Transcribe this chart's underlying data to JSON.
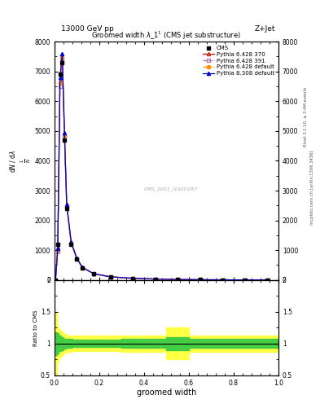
{
  "title": "Groomed width $\\lambda\\_1^1$ (CMS jet substructure)",
  "header_left": "13000 GeV pp",
  "header_right": "Z+Jet",
  "xlabel": "groomed width",
  "ylabel_main": "1 / mathrm{N} d mathrm{N} / d lambda",
  "ylabel_ratio": "Ratio to CMS",
  "watermark": "CMS_2021_I1920187",
  "rivet_text": "Rivet 3.1.10, ≥ 3.4M events",
  "arxiv_text": "mcplots.cern.ch [arXiv:1306.3436]",
  "xlim": [
    0,
    1
  ],
  "ylim_main": [
    0,
    8000
  ],
  "ylim_ratio": [
    0.5,
    2.0
  ],
  "yticks_main": [
    0,
    1000,
    2000,
    3000,
    4000,
    5000,
    6000,
    7000,
    8000
  ],
  "ytick_labels_main": [
    "0",
    "1000",
    "2000",
    "3000",
    "4000",
    "5000",
    "6000",
    "7000",
    "8000"
  ],
  "cms_x": [
    0.005,
    0.015,
    0.025,
    0.035,
    0.045,
    0.055,
    0.075,
    0.1,
    0.125,
    0.175,
    0.25,
    0.35,
    0.45,
    0.55,
    0.65,
    0.75,
    0.85,
    0.95
  ],
  "cms_y": [
    0,
    1200,
    6900,
    7300,
    4700,
    2400,
    1200,
    700,
    400,
    200,
    100,
    55,
    30,
    15,
    8,
    5,
    3,
    2
  ],
  "p6_370_x": [
    0.005,
    0.015,
    0.025,
    0.035,
    0.045,
    0.055,
    0.075,
    0.1,
    0.125,
    0.175,
    0.25,
    0.35,
    0.45,
    0.55,
    0.65,
    0.75,
    0.85,
    0.95
  ],
  "p6_370_y": [
    0,
    1100,
    6700,
    7500,
    4900,
    2500,
    1250,
    720,
    420,
    210,
    105,
    58,
    32,
    16,
    9,
    5,
    3,
    2
  ],
  "p6_391_x": [
    0.005,
    0.015,
    0.025,
    0.035,
    0.045,
    0.055,
    0.075,
    0.1,
    0.125,
    0.175,
    0.25,
    0.35,
    0.45,
    0.55,
    0.65,
    0.75,
    0.85,
    0.95
  ],
  "p6_391_y": [
    0,
    950,
    6500,
    7400,
    4800,
    2450,
    1220,
    710,
    410,
    205,
    102,
    56,
    31,
    15,
    8,
    5,
    3,
    2
  ],
  "p6_def_x": [
    0.005,
    0.015,
    0.025,
    0.035,
    0.045,
    0.055,
    0.075,
    0.1,
    0.125,
    0.175,
    0.25,
    0.35,
    0.45,
    0.55,
    0.65,
    0.75,
    0.85,
    0.95
  ],
  "p6_def_y": [
    0,
    1000,
    6600,
    7450,
    4850,
    2480,
    1230,
    715,
    415,
    208,
    103,
    57,
    31,
    16,
    8,
    5,
    3,
    2
  ],
  "p8_def_x": [
    0.005,
    0.015,
    0.025,
    0.035,
    0.045,
    0.055,
    0.075,
    0.1,
    0.125,
    0.175,
    0.25,
    0.35,
    0.45,
    0.55,
    0.65,
    0.75,
    0.85,
    0.95
  ],
  "p8_def_y": [
    0,
    1050,
    6800,
    7600,
    4950,
    2550,
    1270,
    730,
    425,
    215,
    107,
    59,
    33,
    17,
    9,
    5,
    3,
    2
  ],
  "band_edges": [
    0.0,
    0.01,
    0.02,
    0.03,
    0.04,
    0.05,
    0.06,
    0.08,
    0.1,
    0.125,
    0.15,
    0.2,
    0.3,
    0.4,
    0.5,
    0.6,
    0.7,
    0.8,
    0.9,
    1.0
  ],
  "band_yellow_lo": [
    0.5,
    0.72,
    0.78,
    0.82,
    0.85,
    0.87,
    0.87,
    0.88,
    0.88,
    0.88,
    0.88,
    0.88,
    0.87,
    0.87,
    0.75,
    0.87,
    0.87,
    0.87,
    0.87
  ],
  "band_yellow_hi": [
    1.5,
    1.28,
    1.22,
    1.18,
    1.15,
    1.13,
    1.13,
    1.12,
    1.12,
    1.12,
    1.12,
    1.12,
    1.13,
    1.13,
    1.25,
    1.13,
    1.13,
    1.13,
    1.13
  ],
  "band_green_lo": [
    0.82,
    0.84,
    0.88,
    0.9,
    0.92,
    0.93,
    0.93,
    0.94,
    0.94,
    0.94,
    0.94,
    0.94,
    0.93,
    0.93,
    0.9,
    0.93,
    0.93,
    0.93,
    0.93
  ],
  "band_green_hi": [
    1.18,
    1.16,
    1.12,
    1.1,
    1.08,
    1.07,
    1.07,
    1.06,
    1.06,
    1.06,
    1.06,
    1.06,
    1.07,
    1.07,
    1.1,
    1.07,
    1.07,
    1.07,
    1.07
  ],
  "color_cms": "#000000",
  "color_p6_370": "#cc0000",
  "color_p6_391": "#aa66aa",
  "color_p6_def": "#ff8800",
  "color_p8_def": "#0000cc",
  "color_yellow": "#ffff44",
  "color_green": "#44cc44",
  "ratio_line": 1.0
}
